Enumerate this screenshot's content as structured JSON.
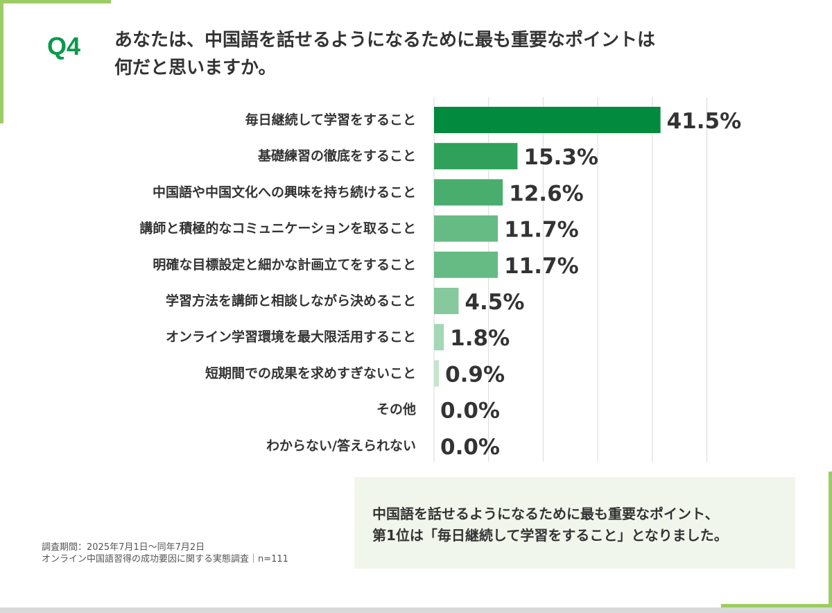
{
  "header": {
    "q_label": "Q4",
    "question_line1": "あなたは、中国語を話せるようになるために最も重要なポイントは",
    "question_line2": "何だと思いますか。"
  },
  "chart_data": {
    "type": "bar",
    "orientation": "horizontal",
    "categories": [
      "毎日継続して学習をすること",
      "基礎練習の徹底をすること",
      "中国語や中国文化への興味を持ち続けること",
      "講師と積極的なコミュニケーションを取ること",
      "明確な目標設定と細かな計画立てをすること",
      "学習方法を講師と相談しながら決めること",
      "オンライン学習環境を最大限活用すること",
      "短期間での成果を求めすぎないこと",
      "その他",
      "わからない/答えられない"
    ],
    "values": [
      41.5,
      15.3,
      12.6,
      11.7,
      11.7,
      4.5,
      1.8,
      0.9,
      0.0,
      0.0
    ],
    "value_labels": [
      "41.5%",
      "15.3%",
      "12.6%",
      "11.7%",
      "11.7%",
      "4.5%",
      "1.8%",
      "0.9%",
      "0.0%",
      "0.0%"
    ],
    "xlim": [
      0,
      50
    ],
    "grid": true,
    "colors": [
      "#028a3e",
      "#2fa15a",
      "#49ae6d",
      "#66bb85",
      "#66bb85",
      "#85c99d",
      "#a4d7b5",
      "#c3e5ce",
      "#d9efe0",
      "#d9efe0"
    ]
  },
  "summary": {
    "line1": "中国語を話せるようになるために最も重要なポイント、",
    "line2": "第1位は「毎日継続して学習をすること」となりました。"
  },
  "footnote": {
    "line1": "調査期間：2025年7月1日～同年7月2日",
    "line2": "オンライン中国語習得の成功要因に関する実態調査｜n=111"
  }
}
